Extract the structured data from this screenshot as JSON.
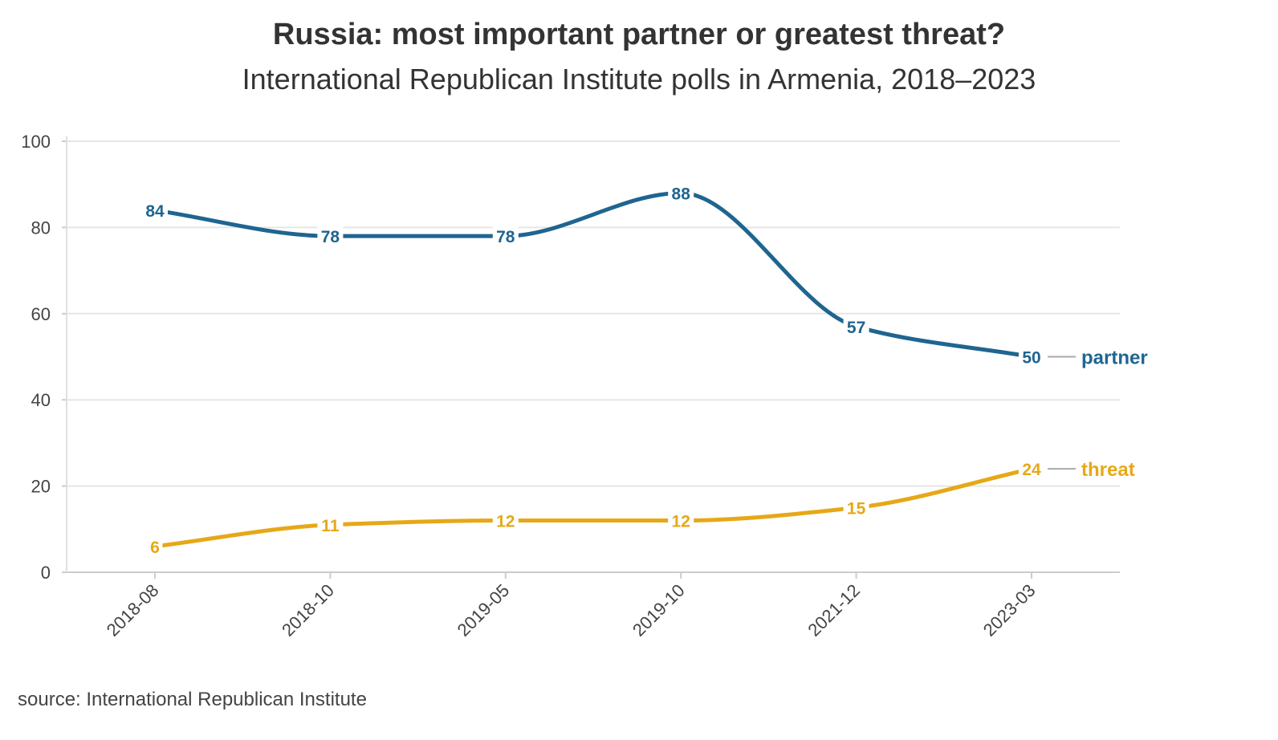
{
  "title": "Russia: most important partner or greatest threat?",
  "subtitle": "International Republican Institute polls in Armenia, 2018–2023",
  "source": "source: International Republican Institute",
  "chart_data": {
    "type": "line",
    "x": [
      "2018-08",
      "2018-10",
      "2019-05",
      "2019-10",
      "2021-12",
      "2023-03"
    ],
    "series": [
      {
        "name": "partner",
        "color": "#1f6590",
        "values": [
          84,
          78,
          78,
          88,
          57,
          50
        ]
      },
      {
        "name": "threat",
        "color": "#e6a817",
        "values": [
          6,
          11,
          12,
          12,
          15,
          24
        ]
      }
    ],
    "y_ticks": [
      0,
      20,
      40,
      60,
      80,
      100
    ],
    "ylim": [
      0,
      100
    ],
    "xlabel": "",
    "ylabel": "",
    "grid": true,
    "legend": "end-of-line labels"
  }
}
